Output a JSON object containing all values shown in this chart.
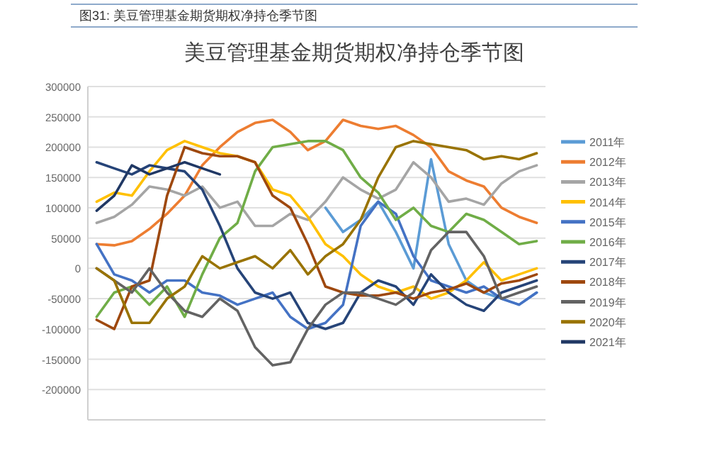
{
  "chart_data": {
    "type": "line",
    "title": "美豆管理基金期货期权净持仓季节图",
    "subtitle": "图31: 美豆管理基金期货期权净持仓季节图",
    "categories": [
      null,
      null,
      null,
      null,
      null,
      null,
      null,
      null,
      null,
      null,
      null,
      null,
      null,
      null,
      null,
      null,
      null,
      null,
      null,
      null,
      null,
      null,
      null,
      null,
      null,
      null
    ],
    "ylim": [
      -250000,
      300000
    ],
    "yticks": [
      -200000,
      -150000,
      -100000,
      -50000,
      0,
      50000,
      100000,
      150000,
      200000,
      250000,
      300000
    ],
    "grid": "y",
    "legend": "right",
    "marker": "none",
    "line_style": "solid",
    "series": [
      {
        "name": "2011年",
        "color": "#5b9bd5",
        "values": [
          null,
          null,
          null,
          null,
          null,
          null,
          null,
          null,
          null,
          null,
          null,
          null,
          null,
          100000,
          60000,
          80000,
          110000,
          60000,
          0,
          180000,
          40000,
          -20000,
          -40000,
          -50000,
          -60000,
          -40000
        ]
      },
      {
        "name": "2012年",
        "color": "#ed7d31",
        "values": [
          40000,
          38000,
          45000,
          65000,
          90000,
          120000,
          170000,
          200000,
          225000,
          240000,
          245000,
          225000,
          195000,
          210000,
          245000,
          235000,
          230000,
          235000,
          220000,
          200000,
          160000,
          145000,
          135000,
          100000,
          85000,
          75000
        ]
      },
      {
        "name": "2013年",
        "color": "#a5a5a5",
        "values": [
          75000,
          85000,
          105000,
          135000,
          130000,
          120000,
          135000,
          100000,
          110000,
          70000,
          70000,
          90000,
          80000,
          110000,
          150000,
          130000,
          115000,
          130000,
          175000,
          150000,
          110000,
          115000,
          105000,
          140000,
          160000,
          170000
        ]
      },
      {
        "name": "2014年",
        "color": "#ffc000",
        "values": [
          110000,
          125000,
          120000,
          160000,
          195000,
          210000,
          200000,
          190000,
          185000,
          175000,
          130000,
          120000,
          85000,
          40000,
          20000,
          -10000,
          -30000,
          -40000,
          -30000,
          -50000,
          -40000,
          -20000,
          10000,
          -20000,
          -10000,
          0
        ]
      },
      {
        "name": "2015年",
        "color": "#4472c4",
        "values": [
          40000,
          -10000,
          -20000,
          -40000,
          -20000,
          -20000,
          -40000,
          -45000,
          -60000,
          -50000,
          -40000,
          -80000,
          -100000,
          -90000,
          -60000,
          70000,
          110000,
          90000,
          20000,
          -20000,
          -30000,
          -40000,
          -30000,
          -50000,
          -60000,
          -40000
        ]
      },
      {
        "name": "2016年",
        "color": "#70ad47",
        "values": [
          -80000,
          -40000,
          -30000,
          -60000,
          -30000,
          -80000,
          -10000,
          50000,
          75000,
          160000,
          200000,
          205000,
          210000,
          210000,
          195000,
          150000,
          125000,
          80000,
          100000,
          70000,
          60000,
          90000,
          80000,
          60000,
          40000,
          45000
        ]
      },
      {
        "name": "2017年",
        "color": "#264478",
        "values": [
          175000,
          165000,
          155000,
          170000,
          165000,
          160000,
          130000,
          70000,
          0,
          -40000,
          -50000,
          -40000,
          -90000,
          -100000,
          -90000,
          -40000,
          -20000,
          -30000,
          -60000,
          -10000,
          -40000,
          -60000,
          -70000,
          -40000,
          -30000,
          -20000
        ]
      },
      {
        "name": "2018年",
        "color": "#9e480e",
        "values": [
          -85000,
          -100000,
          -30000,
          -20000,
          120000,
          200000,
          190000,
          185000,
          185000,
          175000,
          120000,
          100000,
          40000,
          -30000,
          -40000,
          -45000,
          -45000,
          -40000,
          -50000,
          -40000,
          -35000,
          -25000,
          -40000,
          -25000,
          -20000,
          -10000
        ]
      },
      {
        "name": "2019年",
        "color": "#636363",
        "values": [
          0,
          -20000,
          -40000,
          0,
          -40000,
          -70000,
          -80000,
          -50000,
          -70000,
          -130000,
          -160000,
          -155000,
          -100000,
          -60000,
          -40000,
          -40000,
          -50000,
          -60000,
          -40000,
          30000,
          60000,
          60000,
          20000,
          -50000,
          -40000,
          -30000
        ]
      },
      {
        "name": "2020年",
        "color": "#997300",
        "values": [
          0,
          -20000,
          -90000,
          -90000,
          -50000,
          -30000,
          20000,
          0,
          10000,
          20000,
          0,
          30000,
          -10000,
          20000,
          40000,
          80000,
          150000,
          200000,
          210000,
          205000,
          200000,
          195000,
          180000,
          185000,
          180000,
          190000
        ]
      },
      {
        "name": "2021年",
        "color": "#203864",
        "values": [
          95000,
          120000,
          170000,
          155000,
          165000,
          175000,
          165000,
          155000,
          null,
          null,
          null,
          null,
          null,
          null,
          null,
          null,
          null,
          null,
          null,
          null,
          null,
          null,
          null,
          null,
          null,
          null
        ]
      }
    ]
  }
}
